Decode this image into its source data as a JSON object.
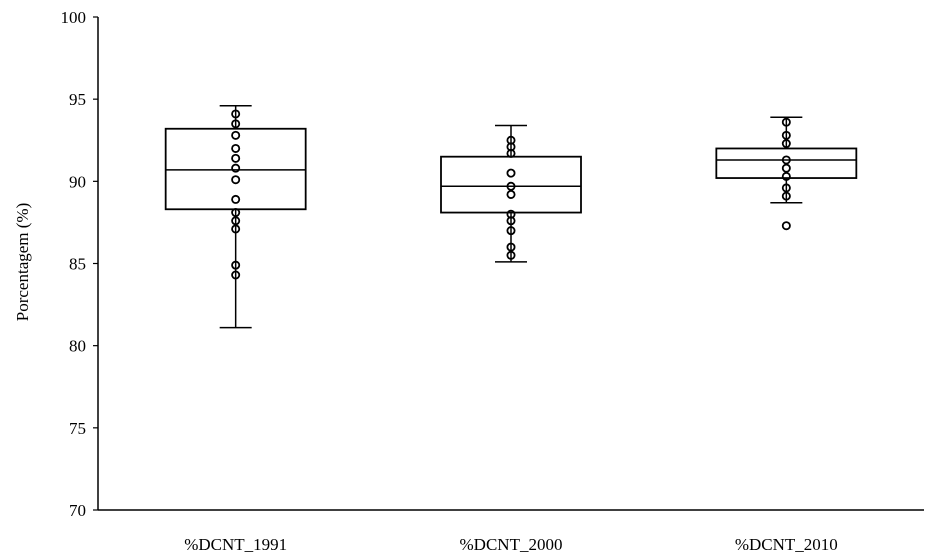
{
  "chart_data": {
    "type": "boxplot",
    "title": "",
    "xlabel": "",
    "ylabel": "Porcentagem (%)",
    "ylim": [
      70,
      100
    ],
    "yticks": [
      70,
      75,
      80,
      85,
      90,
      95,
      100
    ],
    "grid": false,
    "categories": [
      "%DCNT_1991",
      "%DCNT_2000",
      "%DCNT_2010"
    ],
    "boxes": [
      {
        "category": "%DCNT_1991",
        "whisker_low": 81.1,
        "q1": 88.3,
        "median": 90.7,
        "q3": 93.2,
        "whisker_high": 94.6,
        "points": [
          84.3,
          84.9,
          87.1,
          87.6,
          88.1,
          88.9,
          90.1,
          90.8,
          91.4,
          92.0,
          92.8,
          93.5,
          94.1
        ],
        "outliers": []
      },
      {
        "category": "%DCNT_2000",
        "whisker_low": 85.1,
        "q1": 88.1,
        "median": 89.7,
        "q3": 91.5,
        "whisker_high": 93.4,
        "points": [
          85.5,
          86.0,
          87.0,
          87.6,
          88.0,
          89.2,
          89.7,
          90.5,
          91.7,
          92.1,
          92.5
        ],
        "outliers": []
      },
      {
        "category": "%DCNT_2010",
        "whisker_low": 88.7,
        "q1": 90.2,
        "median": 91.3,
        "q3": 92.0,
        "whisker_high": 93.9,
        "points": [
          89.1,
          89.6,
          90.3,
          90.8,
          91.3,
          92.3,
          92.8,
          93.6
        ],
        "outliers": [
          87.3
        ]
      }
    ]
  }
}
